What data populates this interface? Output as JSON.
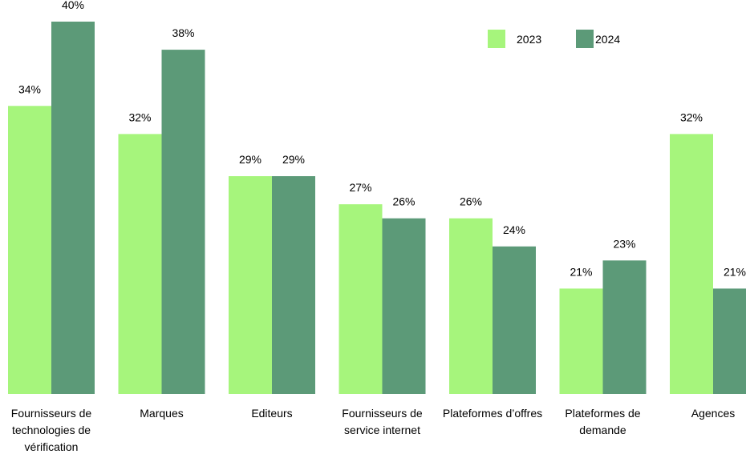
{
  "chart_data": {
    "type": "bar",
    "categories": [
      "Fournisseurs de technologies de vérification",
      "Marques",
      "Editeurs",
      "Fournisseurs de service internet",
      "Plateformes d’offres",
      "Plateformes de demande",
      "Agences"
    ],
    "series": [
      {
        "name": "2023",
        "color": "#a6f57c",
        "values": [
          34,
          32,
          29,
          27,
          26,
          21,
          32
        ],
        "value_labels": [
          "34%",
          "32%",
          "29%",
          "27%",
          "26%",
          "21%",
          "32%"
        ]
      },
      {
        "name": "2024",
        "color": "#5c9a78",
        "values": [
          40,
          38,
          29,
          26,
          24,
          23,
          21
        ],
        "value_labels": [
          "40%",
          "38%",
          "29%",
          "26%",
          "24%",
          "23%",
          "21%"
        ]
      }
    ],
    "ylim": [
      13.5,
      40
    ],
    "grid": false,
    "legend": "top-right"
  }
}
